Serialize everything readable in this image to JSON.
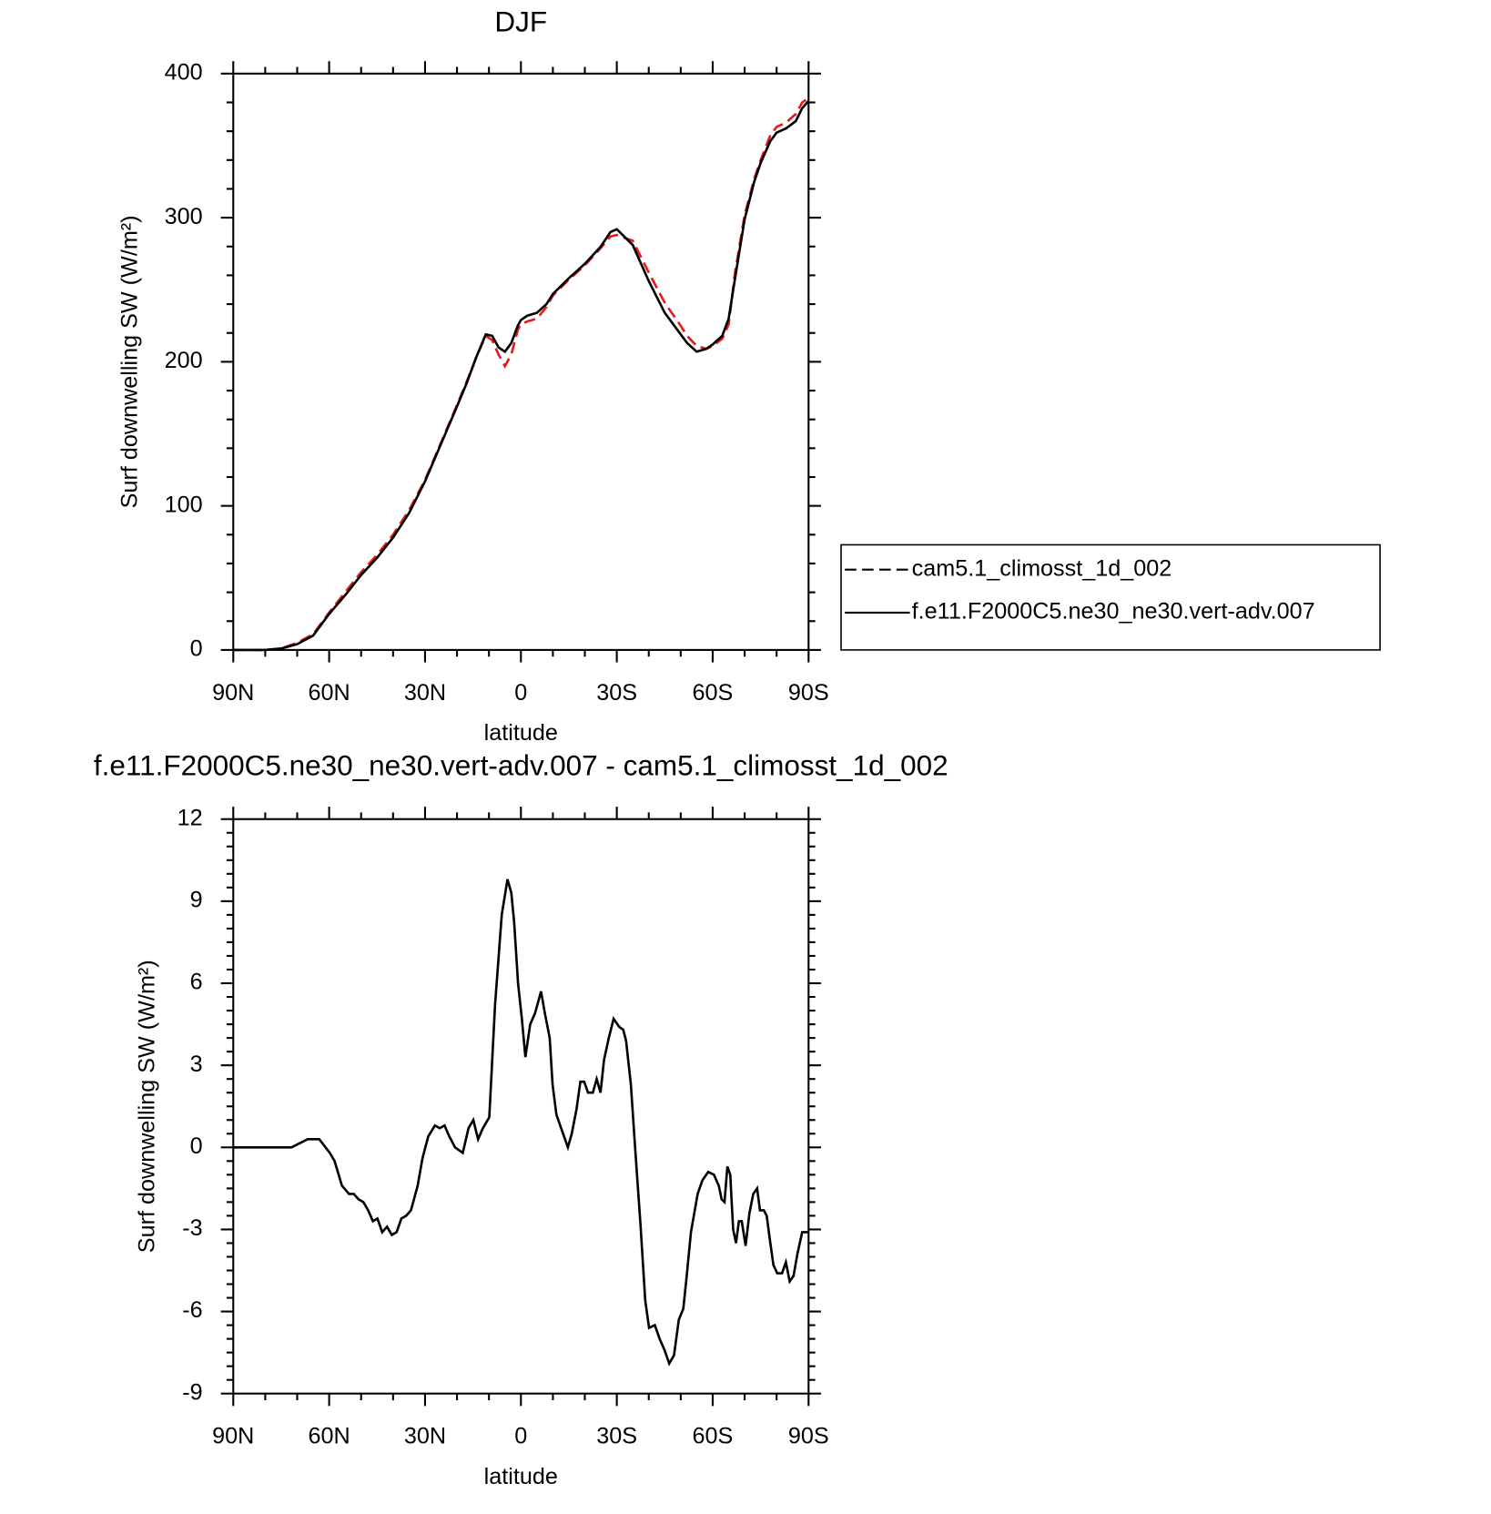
{
  "chart_data": [
    {
      "type": "line",
      "title": "DJF",
      "xlabel": "latitude",
      "ylabel": "Surf downwelling SW (W/m²)",
      "x": [
        90,
        85,
        80,
        75,
        70,
        65,
        60,
        55,
        50,
        45,
        40,
        35,
        30,
        25,
        20,
        17,
        14,
        11,
        9,
        7,
        5,
        3,
        1,
        0,
        -2,
        -5,
        -8,
        -10,
        -15,
        -20,
        -25,
        -28,
        -30,
        -35,
        -40,
        -45,
        -50,
        -52,
        -55,
        -58,
        -60,
        -63,
        -65,
        -67,
        -70,
        -73,
        -75,
        -78,
        -80,
        -83,
        -86,
        -88,
        -90
      ],
      "series": [
        {
          "name": "cam5.1_climosst_1d_002",
          "color": "#e8191c",
          "dash": true,
          "values": [
            0,
            0,
            0,
            1,
            5,
            11,
            26,
            40,
            54,
            66,
            80,
            97,
            118,
            144,
            170,
            186,
            203,
            218,
            215,
            205,
            197,
            205,
            222,
            226,
            228,
            230,
            238,
            246,
            257,
            267,
            279,
            287,
            288,
            284,
            262,
            241,
            225,
            218,
            211,
            209,
            211,
            216,
            226,
            262,
            302,
            327,
            340,
            357,
            363,
            366,
            372,
            380,
            383
          ]
        },
        {
          "name": "f.e11.F2000C5.ne30_ne30.vert-adv.007",
          "color": "#000000",
          "dash": false,
          "values": [
            0,
            0,
            0,
            1,
            4,
            10,
            25,
            38,
            52,
            64,
            78,
            95,
            117,
            143,
            169,
            185,
            203,
            219,
            218,
            210,
            207,
            213,
            225,
            229,
            232,
            234,
            240,
            247,
            258,
            268,
            280,
            290,
            292,
            281,
            256,
            234,
            219,
            213,
            207,
            209,
            212,
            218,
            230,
            258,
            299,
            325,
            338,
            353,
            359,
            362,
            367,
            376,
            381
          ]
        }
      ],
      "xlim": [
        90,
        -90
      ],
      "ylim": [
        0,
        400
      ],
      "xticks": [
        {
          "value": 90,
          "label": "90N"
        },
        {
          "value": 60,
          "label": "60N"
        },
        {
          "value": 30,
          "label": "30N"
        },
        0,
        {
          "value": -30,
          "label": "30S"
        },
        {
          "value": -60,
          "label": "60S"
        },
        {
          "value": -90,
          "label": "90S"
        }
      ],
      "yticks": [
        0,
        100,
        200,
        300,
        400
      ],
      "xminorticks": [
        80,
        70,
        50,
        40,
        20,
        10,
        -10,
        -20,
        -40,
        -50,
        -70,
        -80
      ],
      "yminorticks": [
        20,
        40,
        60,
        80,
        120,
        140,
        160,
        180,
        220,
        240,
        260,
        280,
        320,
        340,
        360,
        380
      ],
      "legend": "right"
    },
    {
      "type": "line",
      "title": "f.e11.F2000C5.ne30_ne30.vert-adv.007 - cam5.1_climosst_1d_002",
      "xlabel": "latitude",
      "ylabel": "Surf downwelling SW (W/m²)",
      "x": [
        90,
        71.8,
        66.7,
        63.1,
        59.8,
        58.3,
        56,
        53.8,
        52.3,
        50.8,
        49.3,
        47.8,
        46.3,
        44.9,
        43.4,
        41.9,
        40.4,
        38.9,
        37.4,
        35.9,
        34.4,
        32.3,
        30.8,
        29,
        26.9,
        25.4,
        23.9,
        22.4,
        20.6,
        18.2,
        16.4,
        14.9,
        13.4,
        11.9,
        9.9,
        8.1,
        6,
        4.2,
        3,
        2.1,
        0.9,
        -0.3,
        -1.4,
        -2.9,
        -4.4,
        -6.3,
        -7.5,
        -9,
        -9.9,
        -11.1,
        -12.6,
        -13.5,
        -14.7,
        -15.9,
        -17.4,
        -18.6,
        -19.8,
        -21,
        -22.5,
        -23.7,
        -24.9,
        -26,
        -27.5,
        -29,
        -30.8,
        -32,
        -32.9,
        -34.4,
        -35.9,
        -37.4,
        -38.9,
        -40.1,
        -41.9,
        -43.4,
        -44.9,
        -46.4,
        -47.9,
        -49.4,
        -50.8,
        -51.7,
        -53.2,
        -55.3,
        -56.8,
        -58.6,
        -60.4,
        -61.9,
        -62.8,
        -63.7,
        -64.6,
        -65.5,
        -66.4,
        -67.3,
        -68.2,
        -69.1,
        -70.3,
        -71.5,
        -72.7,
        -73.9,
        -74.8,
        -76,
        -76.9,
        -77.8,
        -79,
        -80.2,
        -81.7,
        -82.9,
        -84.1,
        -85.3,
        -86.5,
        -88,
        -90
      ],
      "values": [
        0,
        0,
        0.3,
        0.3,
        -0.2,
        -0.5,
        -1.4,
        -1.7,
        -1.7,
        -1.9,
        -2.0,
        -2.3,
        -2.7,
        -2.6,
        -3.1,
        -2.9,
        -3.2,
        -3.1,
        -2.6,
        -2.5,
        -2.3,
        -1.4,
        -0.4,
        0.4,
        0.8,
        0.7,
        0.8,
        0.4,
        0,
        -0.2,
        0.7,
        1.0,
        0.3,
        0.7,
        1.1,
        5.2,
        8.5,
        9.8,
        9.3,
        8.2,
        6,
        4.7,
        3.3,
        4.5,
        4.9,
        5.7,
        4.9,
        4,
        2.3,
        1.2,
        0.7,
        0.4,
        0,
        0.5,
        1.4,
        2.4,
        2.4,
        2.0,
        2.0,
        2.5,
        2.0,
        3.2,
        4,
        4.7,
        4.4,
        4.3,
        3.9,
        2.3,
        -0.3,
        -2.8,
        -5.6,
        -6.6,
        -6.5,
        -7,
        -7.4,
        -7.9,
        -7.6,
        -6.3,
        -5.9,
        -4.9,
        -3.1,
        -1.7,
        -1.2,
        -0.9,
        -1,
        -1.4,
        -1.9,
        -2.0,
        -0.7,
        -1.0,
        -3.0,
        -3.5,
        -2.7,
        -2.7,
        -3.6,
        -2.4,
        -1.7,
        -1.5,
        -2.3,
        -2.3,
        -2.5,
        -3.3,
        -4.3,
        -4.6,
        -4.6,
        -4.2,
        -4.9,
        -4.7,
        -3.9,
        -3.1,
        -3.1
      ],
      "color": "#000000",
      "xlim": [
        90,
        -90
      ],
      "ylim": [
        -9,
        12
      ],
      "xticks": [
        {
          "value": 90,
          "label": "90N"
        },
        {
          "value": 60,
          "label": "60N"
        },
        {
          "value": 30,
          "label": "30N"
        },
        0,
        {
          "value": -30,
          "label": "30S"
        },
        {
          "value": -60,
          "label": "60S"
        },
        {
          "value": -90,
          "label": "90S"
        }
      ],
      "yticks": [
        -9,
        -6,
        -3,
        0,
        3,
        6,
        9,
        12
      ],
      "xminorticks": [
        80,
        70,
        50,
        40,
        20,
        10,
        -10,
        -20,
        -40,
        -50,
        -70,
        -80
      ],
      "yminorticks": [
        -8.5,
        -8,
        -7.5,
        -7,
        -6.5,
        -5.5,
        -5,
        -4.5,
        -4,
        -3.5,
        -2.5,
        -2,
        -1.5,
        -1,
        -0.5,
        0.5,
        1,
        1.5,
        2,
        2.5,
        3.5,
        4,
        4.5,
        5,
        5.5,
        6.5,
        7,
        7.5,
        8,
        8.5,
        9.5,
        10,
        10.5,
        11,
        11.5
      ]
    }
  ]
}
